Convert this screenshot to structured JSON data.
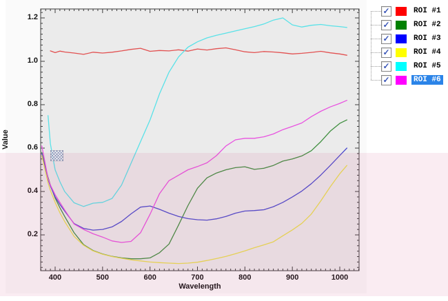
{
  "window": {
    "page_background": "#ffffff",
    "widget_background": "#fafafa"
  },
  "chart_data": {
    "type": "line",
    "title": "",
    "xlabel": "Wavelength",
    "ylabel": "Value",
    "xlim": [
      369.5,
      1040.7
    ],
    "ylim": [
      0.035,
      1.2413
    ],
    "grid": false,
    "legend_position": "right",
    "plot_bg": "#ebebeb",
    "axis_color": "#3c3c3c",
    "x_major_ticks": [
      400,
      500,
      600,
      700,
      800,
      900,
      1000
    ],
    "x_tick_labels": [
      "400",
      "500",
      "600",
      "700",
      "800",
      "900",
      "1000"
    ],
    "x_minor_step": 10,
    "y_major_ticks": [
      0.2,
      0.4,
      0.6,
      0.8,
      1.0,
      1.2
    ],
    "y_tick_labels": [
      "0.2",
      "0.4",
      "0.6",
      "0.8",
      "1.0",
      "1.2"
    ],
    "y_minor_step": 0.025,
    "x": [
      372,
      385,
      390,
      400,
      410,
      420,
      440,
      460,
      480,
      500,
      520,
      540,
      560,
      580,
      600,
      620,
      640,
      660,
      680,
      700,
      720,
      740,
      760,
      780,
      800,
      820,
      840,
      860,
      880,
      900,
      920,
      940,
      960,
      980,
      1000,
      1015
    ],
    "series": [
      {
        "name": "ROI #1",
        "color": "#e25050",
        "values": [
          null,
          null,
          1.048,
          1.04,
          1.047,
          1.043,
          1.038,
          1.032,
          1.042,
          1.038,
          1.042,
          1.048,
          1.055,
          1.06,
          1.046,
          1.05,
          1.048,
          1.053,
          1.047,
          1.057,
          1.052,
          1.058,
          1.062,
          1.053,
          1.044,
          1.04,
          1.045,
          1.043,
          1.039,
          1.034,
          1.037,
          1.041,
          1.046,
          1.039,
          1.034,
          1.028
        ]
      },
      {
        "name": "ROI #2",
        "color": "#3f8f3f",
        "values": [
          0.58,
          0.465,
          0.43,
          0.37,
          0.325,
          0.285,
          0.21,
          0.155,
          0.128,
          0.112,
          0.101,
          0.094,
          0.09,
          0.09,
          0.094,
          0.118,
          0.158,
          0.245,
          0.335,
          0.415,
          0.463,
          0.485,
          0.5,
          0.51,
          0.514,
          0.502,
          0.507,
          0.52,
          0.54,
          0.55,
          0.564,
          0.588,
          0.63,
          0.678,
          0.714,
          0.73
        ]
      },
      {
        "name": "ROI #3",
        "color": "#4a4ace",
        "values": [
          0.575,
          0.455,
          0.425,
          0.375,
          0.34,
          0.31,
          0.252,
          0.23,
          0.222,
          0.225,
          0.237,
          0.262,
          0.297,
          0.328,
          0.333,
          0.318,
          0.3,
          0.285,
          0.275,
          0.27,
          0.268,
          0.274,
          0.285,
          0.3,
          0.31,
          0.312,
          0.316,
          0.33,
          0.35,
          0.375,
          0.402,
          0.436,
          0.476,
          0.52,
          0.566,
          0.6
        ]
      },
      {
        "name": "ROI #4",
        "color": "#e8e050",
        "values": [
          0.565,
          0.44,
          0.405,
          0.35,
          0.302,
          0.262,
          0.193,
          0.152,
          0.126,
          0.111,
          0.1,
          0.092,
          0.085,
          0.08,
          0.075,
          0.072,
          0.07,
          0.068,
          0.07,
          0.074,
          0.082,
          0.091,
          0.101,
          0.113,
          0.126,
          0.141,
          0.154,
          0.168,
          0.196,
          0.223,
          0.253,
          0.296,
          0.357,
          0.422,
          0.482,
          0.52
        ]
      },
      {
        "name": "ROI #5",
        "color": "#58e2e8",
        "values": [
          null,
          0.75,
          0.62,
          0.5,
          0.445,
          0.4,
          0.348,
          0.331,
          0.346,
          0.35,
          0.368,
          0.43,
          0.53,
          0.63,
          0.73,
          0.85,
          0.95,
          1.02,
          1.065,
          1.09,
          1.108,
          1.12,
          1.13,
          1.14,
          1.15,
          1.16,
          1.172,
          1.19,
          1.2,
          1.168,
          1.158,
          1.166,
          1.17,
          1.164,
          1.16,
          1.156
        ]
      },
      {
        "name": "ROI #6",
        "color": "#e853e0",
        "values": [
          0.61,
          0.46,
          0.43,
          0.385,
          0.35,
          0.315,
          0.25,
          0.225,
          0.205,
          0.19,
          0.172,
          0.165,
          0.17,
          0.21,
          0.295,
          0.39,
          0.45,
          0.475,
          0.5,
          0.515,
          0.532,
          0.565,
          0.61,
          0.638,
          0.645,
          0.645,
          0.652,
          0.665,
          0.685,
          0.7,
          0.716,
          0.745,
          0.77,
          0.79,
          0.806,
          0.82
        ]
      }
    ]
  },
  "legend": {
    "check_glyph": "✓",
    "check_color": "#3a56b8",
    "highlight_color": "#2b84e8",
    "items": [
      {
        "label": "ROI #1",
        "swatch": "#ff0000",
        "checked": true,
        "selected": false
      },
      {
        "label": "ROI #2",
        "swatch": "#008000",
        "checked": true,
        "selected": false
      },
      {
        "label": "ROI #3",
        "swatch": "#0000ff",
        "checked": true,
        "selected": false
      },
      {
        "label": "ROI #4",
        "swatch": "#ffff00",
        "checked": true,
        "selected": false
      },
      {
        "label": "ROI #5",
        "swatch": "#00ffff",
        "checked": true,
        "selected": false
      },
      {
        "label": "ROI #6",
        "swatch": "#ff00ff",
        "checked": true,
        "selected": true
      }
    ]
  },
  "overlay": {
    "color": "rgba(206,77,128,0.105)"
  }
}
